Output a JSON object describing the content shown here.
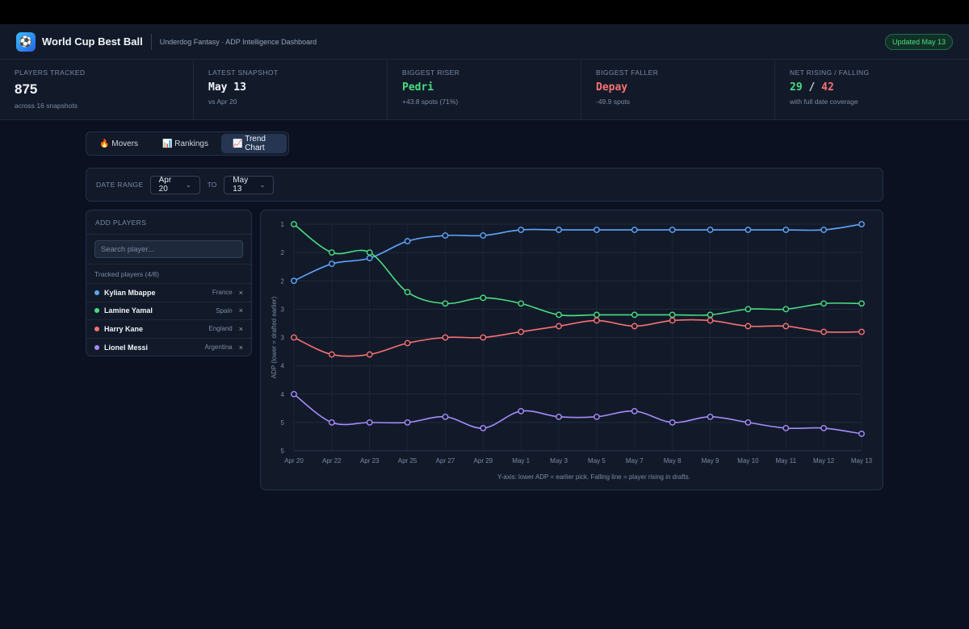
{
  "header": {
    "logo_icon": "soccer-ball-icon",
    "title": "World Cup Best Ball",
    "subtitle": "Underdog Fantasy · ADP Intelligence Dashboard",
    "updated": "Updated May 13"
  },
  "stats": [
    {
      "label": "PLAYERS TRACKED",
      "value": "875",
      "sub": "across 16 snapshots"
    },
    {
      "label": "LATEST SNAPSHOT",
      "value": "May 13",
      "sub": "vs Apr 20"
    },
    {
      "label": "BIGGEST RISER",
      "value": "Pedri",
      "sub": "+43.8 spots (71%)"
    },
    {
      "label": "BIGGEST FALLER",
      "value": "Depay",
      "sub": "-49.9 spots"
    },
    {
      "label": "NET RISING / FALLING",
      "value_up": "29",
      "value_sep": "/",
      "value_down": "42",
      "sub": "with full date coverage"
    }
  ],
  "tabs": [
    {
      "icon": "🔥",
      "label": "Movers",
      "active": false
    },
    {
      "icon": "📊",
      "label": "Rankings",
      "active": false
    },
    {
      "icon": "📈",
      "label": "Trend Chart",
      "active": true
    }
  ],
  "date_range": {
    "label": "DATE RANGE",
    "from": "Apr 20",
    "to_label": "TO",
    "to": "May 13"
  },
  "players_panel": {
    "title": "ADD PLAYERS",
    "search_placeholder": "Search player...",
    "tracked_label": "Tracked players (4/8)",
    "players": [
      {
        "name": "Kylian Mbappe",
        "country": "France",
        "color": "#60a5fa"
      },
      {
        "name": "Lamine Yamal",
        "country": "Spain",
        "color": "#4ade80"
      },
      {
        "name": "Harry Kane",
        "country": "England",
        "color": "#f87171"
      },
      {
        "name": "Lionel Messi",
        "country": "Argentina",
        "color": "#a78bfa"
      }
    ],
    "remove_symbol": "×"
  },
  "chart_data": {
    "type": "line",
    "ylabel": "ADP (lower = drafted earlier)",
    "y_tick_labels": [
      "1",
      "2",
      "2",
      "3",
      "3",
      "4",
      "4",
      "5",
      "5"
    ],
    "y_ticks": [
      1.0,
      1.5,
      2.0,
      2.5,
      3.0,
      3.5,
      4.0,
      4.5,
      5.0
    ],
    "ylim": [
      1.0,
      5.0
    ],
    "y_inverted": true,
    "grid": true,
    "x": [
      "Apr 20",
      "Apr 22",
      "Apr 23",
      "Apr 25",
      "Apr 27",
      "Apr 29",
      "May 1",
      "May 3",
      "May 5",
      "May 7",
      "May 8",
      "May 9",
      "May 10",
      "May 11",
      "May 12",
      "May 13"
    ],
    "series": [
      {
        "name": "Kylian Mbappe",
        "color": "#60a5fa",
        "values": [
          2.0,
          1.7,
          1.6,
          1.3,
          1.2,
          1.2,
          1.1,
          1.1,
          1.1,
          1.1,
          1.1,
          1.1,
          1.1,
          1.1,
          1.1,
          1.0
        ]
      },
      {
        "name": "Lamine Yamal",
        "color": "#4ade80",
        "values": [
          1.0,
          1.5,
          1.5,
          2.2,
          2.4,
          2.3,
          2.4,
          2.6,
          2.6,
          2.6,
          2.6,
          2.6,
          2.5,
          2.5,
          2.4,
          2.4
        ]
      },
      {
        "name": "Harry Kane",
        "color": "#f87171",
        "values": [
          3.0,
          3.3,
          3.3,
          3.1,
          3.0,
          3.0,
          2.9,
          2.8,
          2.7,
          2.8,
          2.7,
          2.7,
          2.8,
          2.8,
          2.9,
          2.9
        ]
      },
      {
        "name": "Lionel Messi",
        "color": "#a78bfa",
        "values": [
          4.0,
          4.5,
          4.5,
          4.5,
          4.4,
          4.6,
          4.3,
          4.4,
          4.4,
          4.3,
          4.5,
          4.4,
          4.5,
          4.6,
          4.6,
          4.7
        ]
      }
    ],
    "caption": "Y-axis: lower ADP = earlier pick. Falling line = player rising in drafts."
  }
}
